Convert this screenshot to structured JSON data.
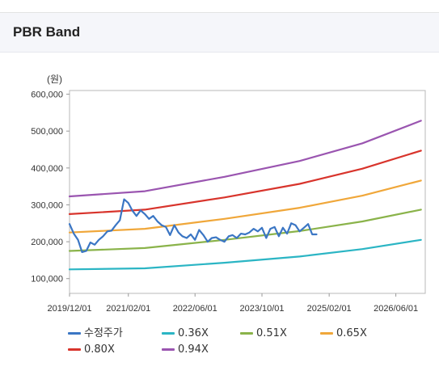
{
  "header": {
    "title": "PBR Band"
  },
  "chart_data": {
    "type": "line",
    "title": "",
    "ylabel": "(원)",
    "xlabel": "",
    "ylim": [
      60000,
      610000
    ],
    "xlim": [
      "2019-12-01",
      "2027-01-01"
    ],
    "y_ticks": [
      100000,
      200000,
      300000,
      400000,
      500000,
      600000
    ],
    "y_tick_labels": [
      "100,000",
      "200,000",
      "300,000",
      "400,000",
      "500,000",
      "600,000"
    ],
    "x_ticks": [
      "2019-12-01",
      "2021-02-01",
      "2022-06-01",
      "2023-10-01",
      "2025-02-01",
      "2026-06-01"
    ],
    "x_tick_labels": [
      "2019/12/01",
      "2021/02/01",
      "2022/06/01",
      "2023/10/01",
      "2025/02/01",
      "2026/06/01"
    ],
    "grid": false,
    "legend_position": "bottom",
    "series": [
      {
        "name": "수정주가",
        "color": "#3b76c4",
        "x": [
          "2019-12-01",
          "2020-01-01",
          "2020-02-01",
          "2020-03-01",
          "2020-04-01",
          "2020-05-01",
          "2020-06-01",
          "2020-07-01",
          "2020-08-01",
          "2020-09-01",
          "2020-10-01",
          "2020-11-01",
          "2020-12-01",
          "2021-01-01",
          "2021-02-01",
          "2021-03-01",
          "2021-04-01",
          "2021-05-01",
          "2021-06-01",
          "2021-07-01",
          "2021-08-01",
          "2021-09-01",
          "2021-10-01",
          "2021-11-01",
          "2021-12-01",
          "2022-01-01",
          "2022-02-01",
          "2022-03-01",
          "2022-04-01",
          "2022-05-01",
          "2022-06-01",
          "2022-07-01",
          "2022-08-01",
          "2022-09-01",
          "2022-10-01",
          "2022-11-01",
          "2022-12-01",
          "2023-01-01",
          "2023-02-01",
          "2023-03-01",
          "2023-04-01",
          "2023-05-01",
          "2023-06-01",
          "2023-07-01",
          "2023-08-01",
          "2023-09-01",
          "2023-10-01",
          "2023-11-01",
          "2023-12-01",
          "2024-01-01",
          "2024-02-01",
          "2024-03-01",
          "2024-04-01",
          "2024-05-01",
          "2024-06-01",
          "2024-07-01",
          "2024-08-01",
          "2024-09-01",
          "2024-10-01",
          "2024-11-01"
        ],
        "values": [
          248000,
          222000,
          205000,
          172000,
          175000,
          198000,
          192000,
          205000,
          215000,
          228000,
          230000,
          245000,
          258000,
          315000,
          305000,
          285000,
          270000,
          285000,
          275000,
          262000,
          270000,
          255000,
          245000,
          240000,
          218000,
          245000,
          225000,
          215000,
          210000,
          220000,
          205000,
          232000,
          218000,
          200000,
          210000,
          212000,
          205000,
          200000,
          215000,
          218000,
          210000,
          222000,
          220000,
          225000,
          235000,
          228000,
          238000,
          210000,
          235000,
          240000,
          215000,
          238000,
          222000,
          250000,
          245000,
          228000,
          238000,
          248000,
          220000,
          220000
        ]
      },
      {
        "name": "0.36X",
        "color": "#2bb5c4",
        "x": [
          "2019-12-01",
          "2021-06-01",
          "2023-01-01",
          "2024-07-01",
          "2025-10-01",
          "2026-12-01"
        ],
        "values": [
          125000,
          128000,
          143000,
          160000,
          180000,
          205000
        ]
      },
      {
        "name": "0.51X",
        "color": "#8ab34a",
        "x": [
          "2019-12-01",
          "2021-06-01",
          "2023-01-01",
          "2024-07-01",
          "2025-10-01",
          "2026-12-01"
        ],
        "values": [
          175000,
          183000,
          205000,
          229000,
          255000,
          287000
        ]
      },
      {
        "name": "0.65X",
        "color": "#f0a73a",
        "x": [
          "2019-12-01",
          "2021-06-01",
          "2023-01-01",
          "2024-07-01",
          "2025-10-01",
          "2026-12-01"
        ],
        "values": [
          225000,
          235000,
          262000,
          292000,
          325000,
          366000
        ]
      },
      {
        "name": "0.80X",
        "color": "#d8342c",
        "x": [
          "2019-12-01",
          "2021-06-01",
          "2023-01-01",
          "2024-07-01",
          "2025-10-01",
          "2026-12-01"
        ],
        "values": [
          275000,
          287000,
          320000,
          357000,
          398000,
          447000
        ]
      },
      {
        "name": "0.94X",
        "color": "#9a55b0",
        "x": [
          "2019-12-01",
          "2021-06-01",
          "2023-01-01",
          "2024-07-01",
          "2025-10-01",
          "2026-12-01"
        ],
        "values": [
          323000,
          337000,
          376000,
          419000,
          467000,
          528000
        ]
      }
    ]
  }
}
